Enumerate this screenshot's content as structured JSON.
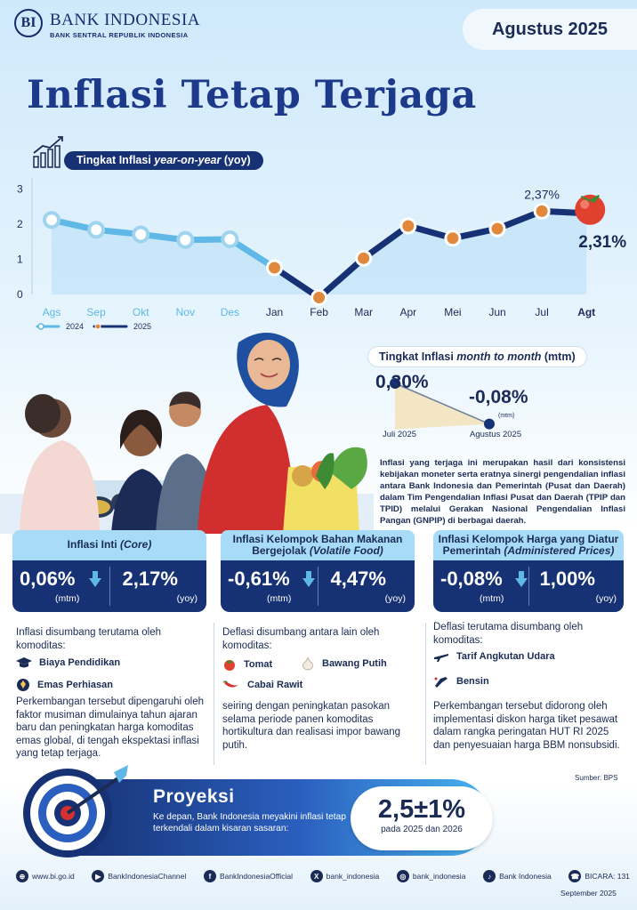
{
  "header": {
    "logo_text": "BANK INDONESIA",
    "logo_sub": "BANK SENTRAL REPUBLIK INDONESIA",
    "period": "Agustus 2025",
    "title": "Inflasi Tetap Terjaga"
  },
  "chart_data": [
    {
      "type": "line",
      "title": "Tingkat Inflasi year-on-year (yoy)",
      "title_plain": "Tingkat Inflasi ",
      "title_italic": "year-on-year",
      "title_tail": " (yoy)",
      "categories": [
        "Ags",
        "Sep",
        "Okt",
        "Nov",
        "Des",
        "Jan",
        "Feb",
        "Mar",
        "Apr",
        "Mei",
        "Jun",
        "Jul",
        "Agt"
      ],
      "y_ticks": [
        "0",
        "1",
        "2",
        "3"
      ],
      "ylim": [
        0,
        3.5
      ],
      "series": [
        {
          "name": "2024",
          "x": [
            "Ags",
            "Sep",
            "Okt",
            "Nov",
            "Des"
          ],
          "values": [
            2.12,
            1.84,
            1.71,
            1.55,
            1.57
          ],
          "color": "#5fb8e6"
        },
        {
          "name": "2025",
          "x": [
            "Jan",
            "Feb",
            "Mar",
            "Apr",
            "Mei",
            "Jun",
            "Jul",
            "Agt"
          ],
          "values": [
            0.76,
            -0.09,
            1.03,
            1.95,
            1.6,
            1.87,
            2.37,
            2.31
          ],
          "color": "#173274"
        }
      ],
      "annotations": {
        "jul": "2,37%",
        "agt": "2,31%"
      },
      "legend": [
        "2024",
        "2025"
      ],
      "grid": false
    },
    {
      "type": "line",
      "title": "Tingkat Inflasi month to month (mtm)",
      "title_plain": "Tingkat Inflasi ",
      "title_italic": "month to month",
      "title_tail": " (mtm)",
      "categories": [
        "Juli 2025",
        "Agustus 2025"
      ],
      "values": [
        0.3,
        -0.08
      ],
      "labels": [
        "0,30%",
        "-0,08%"
      ],
      "unit": "(mtm)"
    }
  ],
  "description": "Inflasi yang terjaga ini merupakan hasil dari konsistensi kebijakan moneter serta eratnya sinergi pengendalian inflasi antara Bank Indonesia dan Pemerintah (Pusat dan Daerah) dalam Tim Pengendalian Inflasi Pusat dan Daerah (TPIP dan TPID) melalui Gerakan Nasional Pengendalian Inflasi Pangan (GNPIP) di berbagai daerah.",
  "cards": [
    {
      "title_plain": "Inflasi Inti ",
      "title_italic": "(Core)",
      "mtm": "0,06%",
      "yoy": "2,17%",
      "unit_mtm": "(mtm)",
      "unit_yoy": "(yoy)",
      "intro": "Inflasi disumbang terutama oleh komoditas:",
      "items": [
        "Biaya Pendidikan",
        "Emas Perhiasan"
      ],
      "note": "Perkembangan tersebut dipengaruhi oleh faktor musiman dimulainya tahun ajaran baru dan peningkatan harga komoditas emas global, di tengah ekspektasi inflasi yang tetap terjaga."
    },
    {
      "title_plain": "Inflasi Kelompok Bahan Makanan Bergejolak ",
      "title_italic": "(Volatile Food)",
      "mtm": "-0,61%",
      "yoy": "4,47%",
      "unit_mtm": "(mtm)",
      "unit_yoy": "(yoy)",
      "intro": "Deflasi disumbang antara lain oleh komoditas:",
      "items": [
        "Tomat",
        "Bawang Putih",
        "Cabai Rawit"
      ],
      "note": "seiring dengan peningkatan pasokan selama periode panen komoditas hortikultura dan realisasi impor bawang putih."
    },
    {
      "title_plain": "Inflasi Kelompok Harga yang Diatur Pemerintah ",
      "title_italic": "(Administered Prices)",
      "mtm": "-0,08%",
      "yoy": "1,00%",
      "unit_mtm": "(mtm)",
      "unit_yoy": "(yoy)",
      "intro": "Deflasi terutama disumbang oleh komoditas:",
      "items": [
        "Tarif Angkutan Udara",
        "Bensin"
      ],
      "note": "Perkembangan tersebut didorong oleh implementasi diskon harga tiket pesawat dalam rangka peringatan HUT RI 2025 dan penyesuaian harga BBM nonsubsidi."
    }
  ],
  "source": "Sumber: BPS",
  "projection": {
    "title": "Proyeksi",
    "text": "Ke depan, Bank Indonesia meyakini inflasi tetap terkendali dalam kisaran sasaran:",
    "value": "2,5±1%",
    "sub": "pada 2025 dan 2026"
  },
  "footer": {
    "items": [
      {
        "icon": "globe-icon",
        "text": "www.bi.go.id"
      },
      {
        "icon": "youtube-icon",
        "text": "BankIndonesiaChannel"
      },
      {
        "icon": "facebook-icon",
        "text": "BankIndonesiaOfficial"
      },
      {
        "icon": "x-icon",
        "text": "bank_indonesia"
      },
      {
        "icon": "instagram-icon",
        "text": "bank_indonesia"
      },
      {
        "icon": "tiktok-icon",
        "text": "Bank Indonesia"
      },
      {
        "icon": "bicara-icon",
        "text": "BICARA: 131"
      }
    ],
    "date": "September 2025"
  }
}
